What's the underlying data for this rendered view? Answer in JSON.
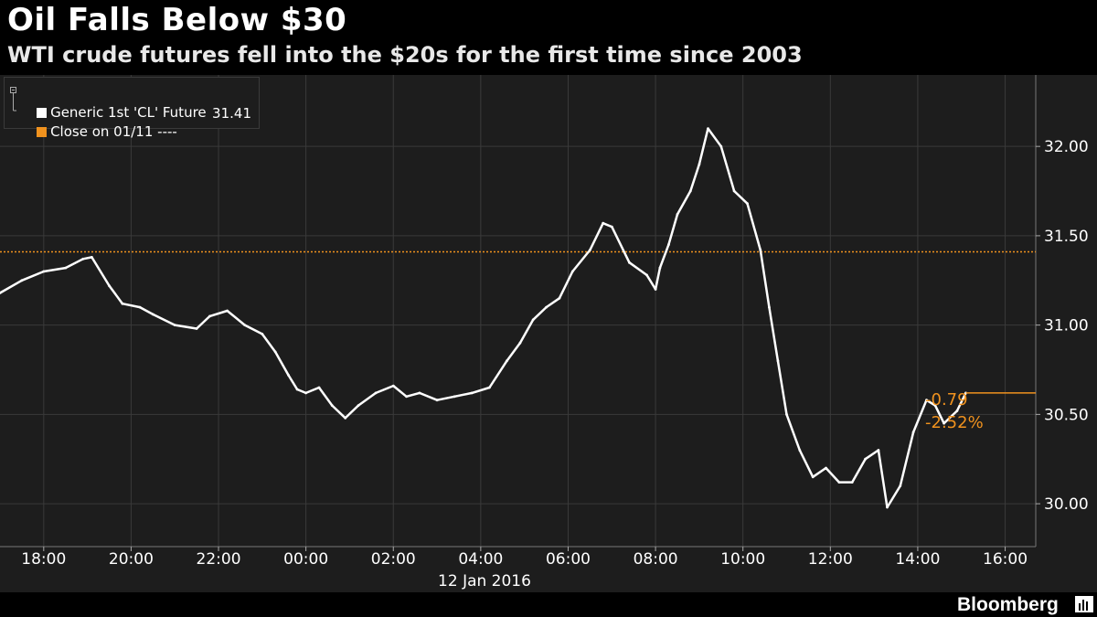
{
  "title": "Oil Falls Below $30",
  "subtitle": "WTI crude futures fell into the $20s for the first time since 2003",
  "legend": {
    "series_label": "Generic 1st 'CL' Future",
    "close_label": "Close on 01/11 ----",
    "close_value": "31.41"
  },
  "change": {
    "abs": "-0.79",
    "pct": "-2.52%"
  },
  "x_date_label": "12 Jan 2016",
  "brand": "Bloomberg",
  "colors": {
    "series": "#ffffff",
    "close": "#f0921e",
    "background": "#000000",
    "plot": "#1d1d1d"
  },
  "chart_data": {
    "type": "line",
    "title": "Oil Falls Below $30",
    "subtitle": "WTI crude futures fell into the $20s for the first time since 2003",
    "xlabel": "12 Jan 2016",
    "ylabel": "",
    "x_ticks": [
      "18:00",
      "20:00",
      "22:00",
      "00:00",
      "02:00",
      "04:00",
      "06:00",
      "08:00",
      "10:00",
      "12:00",
      "14:00",
      "16:00"
    ],
    "y_ticks": [
      "30.00",
      "30.50",
      "31.00",
      "31.50",
      "32.00"
    ],
    "ylim": [
      29.76,
      32.4
    ],
    "xlim_hours": [
      17.0,
      40.7
    ],
    "reference_line": {
      "label": "Close on 01/11",
      "value": 31.41
    },
    "last_value": 30.62,
    "change_abs": "-0.79",
    "change_pct": "-2.52%",
    "series": [
      {
        "name": "Generic 1st 'CL' Future",
        "x": [
          17.0,
          17.5,
          18.0,
          18.5,
          18.9,
          19.1,
          19.5,
          19.8,
          20.2,
          20.5,
          21.0,
          21.5,
          21.8,
          22.2,
          22.6,
          23.0,
          23.3,
          23.6,
          23.8,
          24.0,
          24.3,
          24.6,
          24.9,
          25.2,
          25.6,
          26.0,
          26.3,
          26.6,
          27.0,
          27.4,
          27.8,
          28.2,
          28.6,
          28.9,
          29.2,
          29.5,
          29.8,
          30.1,
          30.5,
          30.8,
          31.0,
          31.4,
          31.8,
          32.0,
          32.1,
          32.3,
          32.5,
          32.8,
          33.0,
          33.2,
          33.5,
          33.8,
          34.1,
          34.4,
          34.6,
          34.8,
          35.0,
          35.3,
          35.6,
          35.9,
          36.2,
          36.5,
          36.8,
          37.1,
          37.3,
          37.6,
          37.9,
          38.2,
          38.4,
          38.6,
          38.9,
          39.1
        ],
        "values": [
          31.18,
          31.25,
          31.3,
          31.32,
          31.37,
          31.38,
          31.22,
          31.12,
          31.1,
          31.06,
          31.0,
          30.98,
          31.05,
          31.08,
          31.0,
          30.95,
          30.85,
          30.72,
          30.64,
          30.62,
          30.65,
          30.55,
          30.48,
          30.55,
          30.62,
          30.66,
          30.6,
          30.62,
          30.58,
          30.6,
          30.62,
          30.65,
          30.8,
          30.9,
          31.03,
          31.1,
          31.15,
          31.3,
          31.42,
          31.57,
          31.55,
          31.35,
          31.28,
          31.2,
          31.32,
          31.45,
          31.62,
          31.75,
          31.9,
          32.1,
          32.0,
          31.75,
          31.68,
          31.42,
          31.1,
          30.8,
          30.5,
          30.3,
          30.15,
          30.2,
          30.12,
          30.12,
          30.25,
          30.3,
          29.98,
          30.1,
          30.4,
          30.58,
          30.55,
          30.45,
          30.52,
          30.62
        ]
      }
    ],
    "grid": true,
    "legend_position": "top-left"
  }
}
